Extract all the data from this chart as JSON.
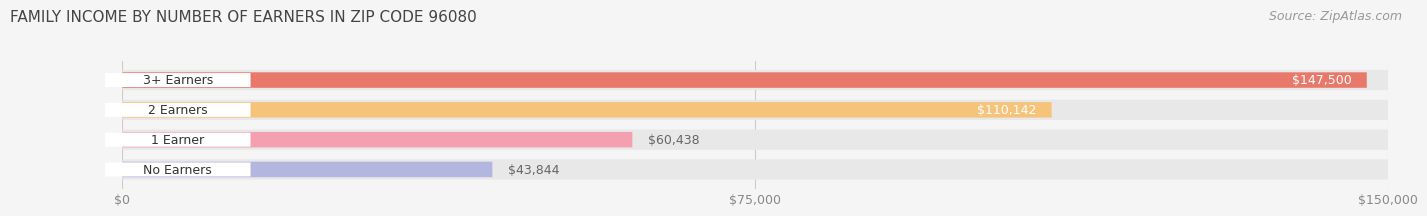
{
  "title": "FAMILY INCOME BY NUMBER OF EARNERS IN ZIP CODE 96080",
  "source": "Source: ZipAtlas.com",
  "categories": [
    "No Earners",
    "1 Earner",
    "2 Earners",
    "3+ Earners"
  ],
  "values": [
    43844,
    60438,
    110142,
    147500
  ],
  "bar_colors": [
    "#b3b7e0",
    "#f4a0b0",
    "#f5c47a",
    "#e8796a"
  ],
  "bar_bg_color": "#e8e8e8",
  "background_color": "#f5f5f5",
  "xlim_min": 0,
  "xlim_max": 150000,
  "xticks": [
    0,
    75000,
    150000
  ],
  "xtick_labels": [
    "$0",
    "$75,000",
    "$150,000"
  ],
  "label_colors": [
    "#555555",
    "#555555",
    "#ffffff",
    "#ffffff"
  ],
  "value_labels": [
    "$43,844",
    "$60,438",
    "$110,142",
    "$147,500"
  ],
  "title_fontsize": 11,
  "source_fontsize": 9,
  "value_label_fontsize": 9,
  "category_fontsize": 9
}
